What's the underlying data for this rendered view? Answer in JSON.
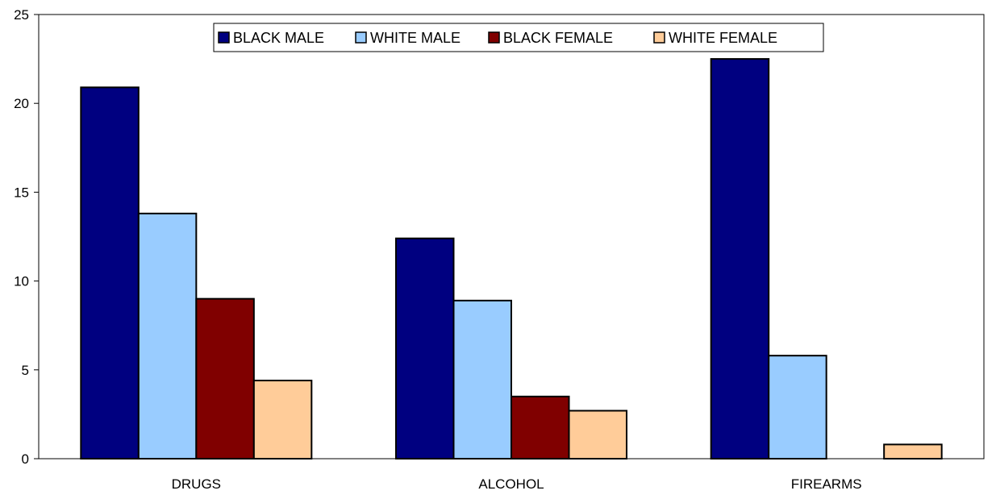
{
  "chart_data": {
    "type": "bar",
    "title": "",
    "xlabel": "",
    "ylabel": "",
    "categories": [
      "DRUGS",
      "ALCOHOL",
      "FIREARMS"
    ],
    "series": [
      {
        "name": "BLACK MALE",
        "color": "#000080",
        "values": [
          20.9,
          12.4,
          22.5
        ]
      },
      {
        "name": "WHITE MALE",
        "color": "#99CCFF",
        "values": [
          13.8,
          8.9,
          5.8
        ]
      },
      {
        "name": "BLACK FEMALE",
        "color": "#800000",
        "values": [
          9.0,
          3.5,
          0
        ]
      },
      {
        "name": "WHITE FEMALE",
        "color": "#FFCC99",
        "values": [
          4.4,
          2.7,
          0.8
        ]
      }
    ],
    "ylim": [
      0,
      25
    ],
    "yticks": [
      0,
      5,
      10,
      15,
      20,
      25
    ],
    "grid": false,
    "legend_position": "top"
  }
}
